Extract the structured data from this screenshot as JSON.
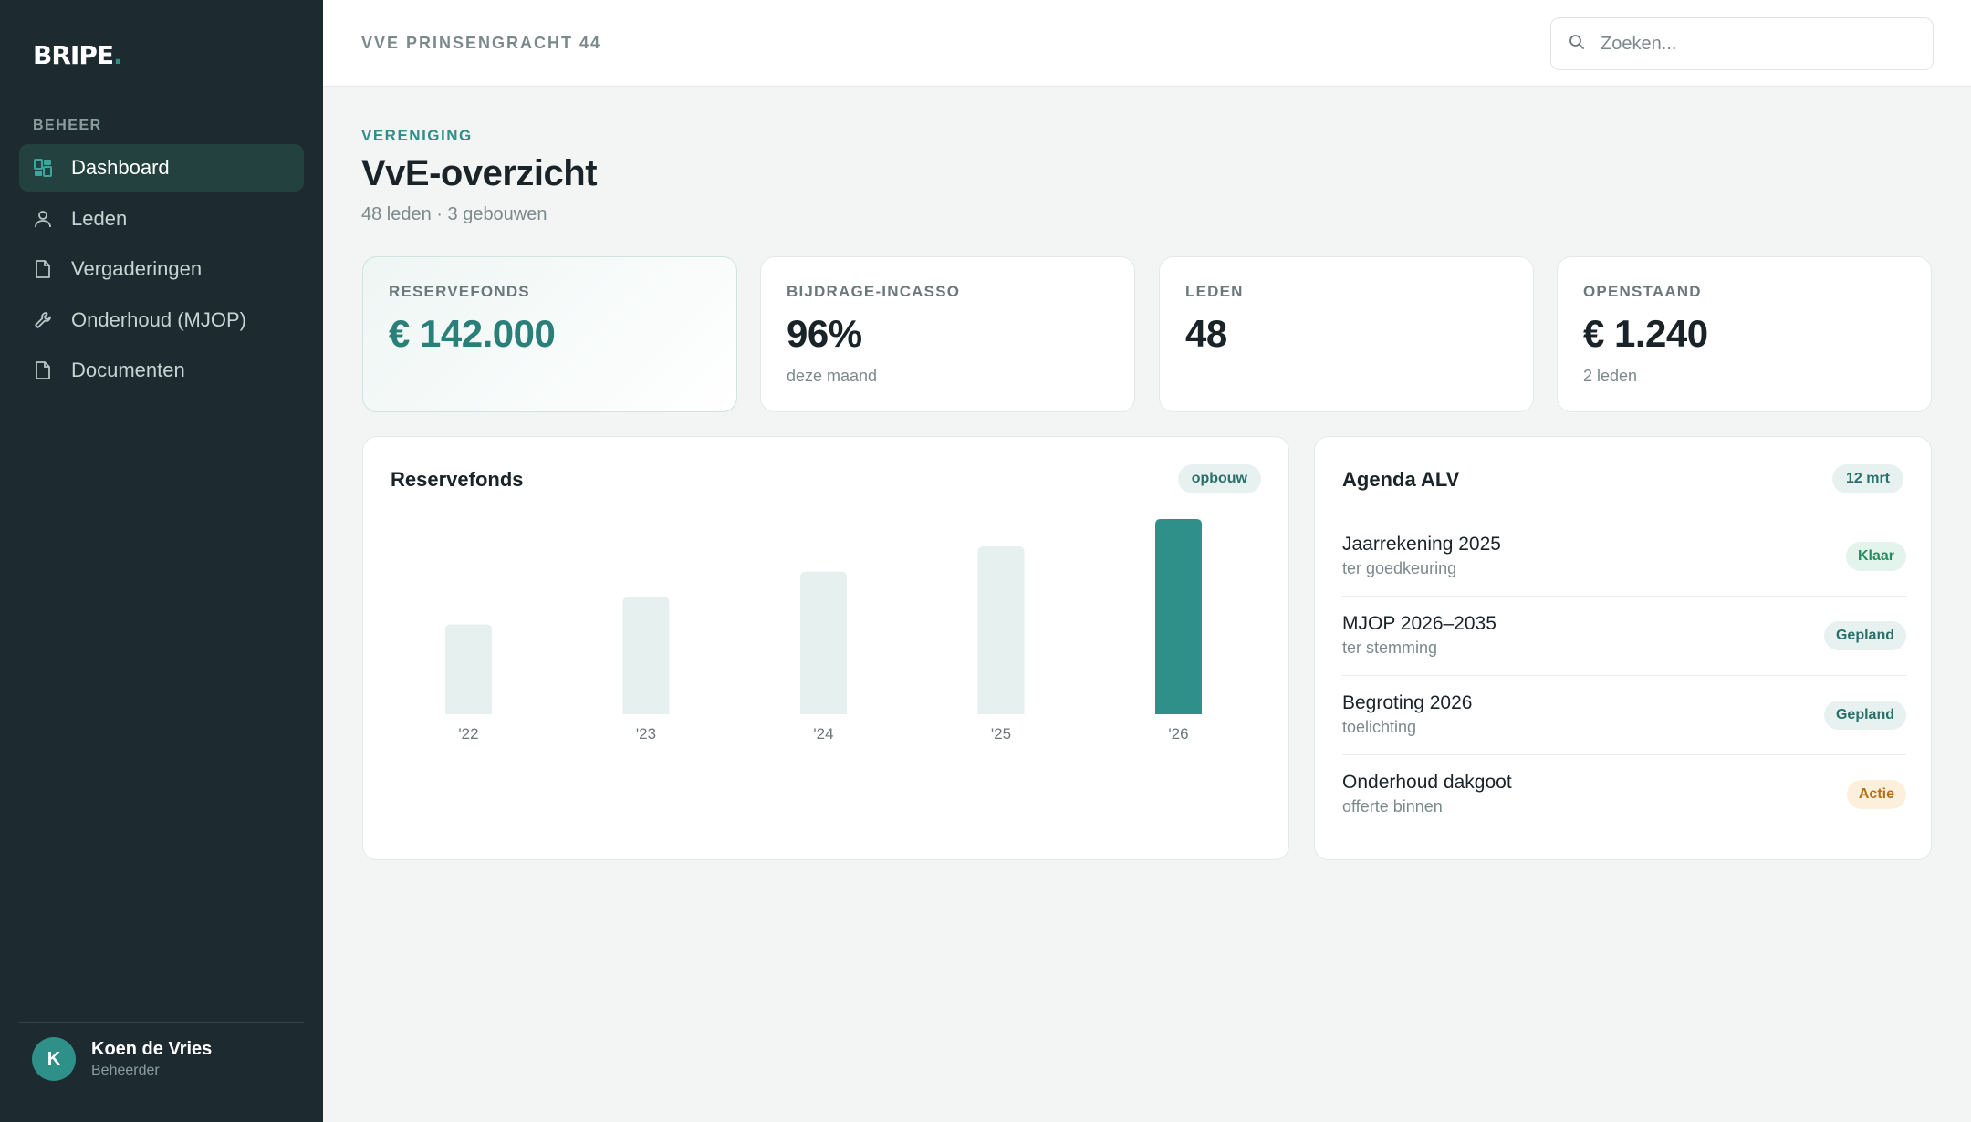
{
  "brand": {
    "name": "BRIPE",
    "dot": ".",
    "accent": "#2f8f89"
  },
  "sidebar": {
    "section": "BEHEER",
    "items": [
      {
        "label": "Dashboard",
        "icon": "dashboard-icon",
        "active": true
      },
      {
        "label": "Leden",
        "icon": "user-icon",
        "active": false
      },
      {
        "label": "Vergaderingen",
        "icon": "document-icon",
        "active": false
      },
      {
        "label": "Onderhoud (MJOP)",
        "icon": "wrench-icon",
        "active": false
      },
      {
        "label": "Documenten",
        "icon": "document-icon",
        "active": false
      }
    ],
    "user": {
      "initial": "K",
      "name": "Koen de Vries",
      "role": "Beheerder"
    }
  },
  "topbar": {
    "breadcrumb": "VVE PRINSENGRACHT 44",
    "search_placeholder": "Zoeken..."
  },
  "header": {
    "eyebrow": "VERENIGING",
    "title": "VvE-overzicht",
    "subtitle": "48 leden · 3 gebouwen"
  },
  "stats": [
    {
      "label": "RESERVEFONDS",
      "value": "€ 142.000",
      "note": ""
    },
    {
      "label": "BIJDRAGE-INCASSO",
      "value": "96%",
      "note": "deze maand"
    },
    {
      "label": "LEDEN",
      "value": "48",
      "note": ""
    },
    {
      "label": "OPENSTAAND",
      "value": "€ 1.240",
      "note": "2 leden"
    }
  ],
  "reserve_card": {
    "title": "Reservefonds",
    "badge": "opbouw"
  },
  "chart_data": {
    "type": "bar",
    "categories": [
      "'22",
      "'23",
      "'24",
      "'25",
      "'26"
    ],
    "values": [
      46,
      60,
      73,
      86,
      100
    ],
    "highlight_index": 4,
    "ylim": [
      0,
      100
    ],
    "bar_color": "#e6f0ee",
    "highlight_color": "#2f8f89",
    "grid": false
  },
  "agenda": {
    "title": "Agenda ALV",
    "date": "12 mrt",
    "items": [
      {
        "title": "Jaarrekening 2025",
        "sub": "ter goedkeuring",
        "status": "Klaar",
        "kind": "klaar"
      },
      {
        "title": "MJOP 2026–2035",
        "sub": "ter stemming",
        "status": "Gepland",
        "kind": "gepland"
      },
      {
        "title": "Begroting 2026",
        "sub": "toelichting",
        "status": "Gepland",
        "kind": "gepland"
      },
      {
        "title": "Onderhoud dakgoot",
        "sub": "offerte binnen",
        "status": "Actie",
        "kind": "actie"
      }
    ]
  }
}
